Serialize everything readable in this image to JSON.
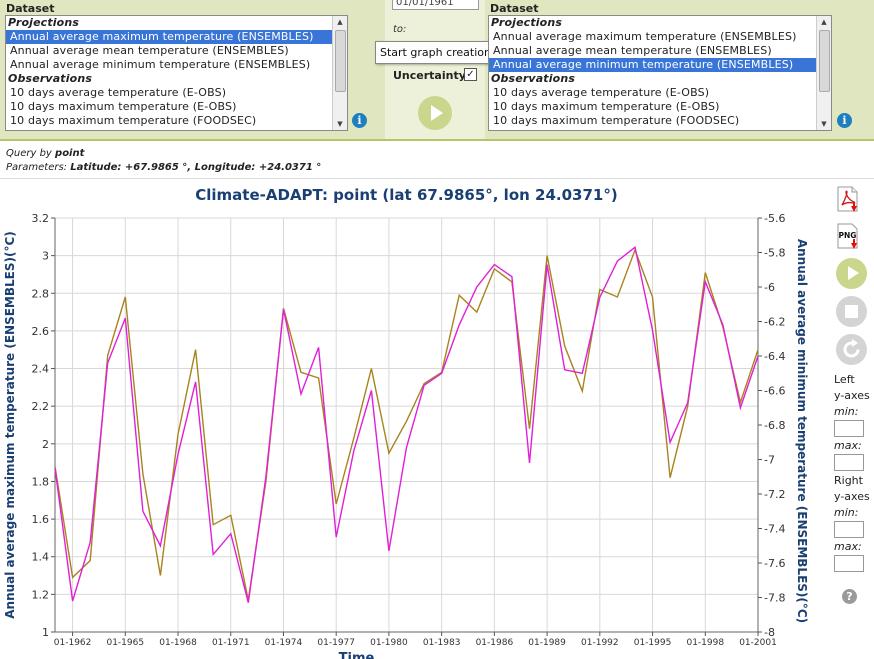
{
  "left_panel": {
    "label": "Dataset",
    "items": [
      {
        "text": "Projections",
        "type": "group"
      },
      {
        "text": "Annual average maximum temperature (ENSEMBLES)",
        "type": "selected"
      },
      {
        "text": "Annual average mean temperature (ENSEMBLES)",
        "type": "item"
      },
      {
        "text": "Annual average minimum temperature (ENSEMBLES)",
        "type": "item"
      },
      {
        "text": "Observations",
        "type": "group"
      },
      {
        "text": "10 days average temperature (E-OBS)",
        "type": "item"
      },
      {
        "text": "10 days maximum temperature (E-OBS)",
        "type": "item"
      },
      {
        "text": "10 days maximum temperature (FOODSEC)",
        "type": "item"
      }
    ]
  },
  "right_panel": {
    "label": "Dataset",
    "items": [
      {
        "text": "Projections",
        "type": "group"
      },
      {
        "text": "Annual average maximum temperature (ENSEMBLES)",
        "type": "item"
      },
      {
        "text": "Annual average mean temperature (ENSEMBLES)",
        "type": "item"
      },
      {
        "text": "Annual average minimum temperature (ENSEMBLES)",
        "type": "selected"
      },
      {
        "text": "Observations",
        "type": "group"
      },
      {
        "text": "10 days average temperature (E-OBS)",
        "type": "item"
      },
      {
        "text": "10 days maximum temperature (E-OBS)",
        "type": "item"
      },
      {
        "text": "10 days maximum temperature (FOODSEC)",
        "type": "item"
      }
    ]
  },
  "controls": {
    "from_date": "01/01/1961",
    "to_label": "to:",
    "tooltip": "Start graph creation",
    "uncertainty_label": "Uncertainty",
    "uncertainty_checked": "✓"
  },
  "query": {
    "prefix": "Query by",
    "mode": "point",
    "params_label": "Parameters:",
    "params_value": "Latitude: +67.9865 °, Longitude: +24.0371 °"
  },
  "sidebar": {
    "pdf_label": "PDF",
    "png_label": "PNG",
    "left_axes_label": "Left",
    "right_axes_label": "Right",
    "axes_label": "y-axes",
    "min_label": "min:",
    "max_label": "max:",
    "help": "?"
  },
  "colors": {
    "left_series": "#a8841e",
    "right_series": "#e020d8",
    "axis_title": "#1a3f72",
    "grid": "#d8d8d8"
  },
  "chart_data": {
    "type": "line",
    "title": "Climate-ADAPT: point (lat 67.9865°, lon 24.0371°)",
    "xlabel": "Time",
    "ylabel_left": "Annual average maximum temperature (ENSEMBLES)(°C)",
    "ylabel_right": "Annual average minimum temperature (ENSEMBLES)(°C)",
    "x_ticks": [
      "01-1962",
      "01-1965",
      "01-1968",
      "01-1971",
      "01-1974",
      "01-1977",
      "01-1980",
      "01-1983",
      "01-1986",
      "01-1989",
      "01-1992",
      "01-1995",
      "01-1998",
      "01-2001"
    ],
    "x": [
      1961,
      1962,
      1963,
      1964,
      1965,
      1966,
      1967,
      1968,
      1969,
      1970,
      1971,
      1972,
      1973,
      1974,
      1975,
      1976,
      1977,
      1978,
      1979,
      1980,
      1981,
      1982,
      1983,
      1984,
      1985,
      1986,
      1987,
      1988,
      1989,
      1990,
      1991,
      1992,
      1993,
      1994,
      1995,
      1996,
      1997,
      1998,
      1999,
      2000,
      2001
    ],
    "xlim": [
      1961,
      2001
    ],
    "ylim_left": [
      1,
      3.2
    ],
    "ylim_right": [
      -8,
      -5.6
    ],
    "y_ticks_left": [
      "1",
      "1.2",
      "1.4",
      "1.6",
      "1.8",
      "2",
      "2.2",
      "2.4",
      "2.6",
      "2.8",
      "3",
      "3.2"
    ],
    "y_ticks_right": [
      "-8",
      "-7.8",
      "-7.6",
      "-7.4",
      "-7.2",
      "-7",
      "-6.8",
      "-6.6",
      "-6.4",
      "-6.2",
      "-6",
      "-5.8",
      "-5.6"
    ],
    "grid": true,
    "series": [
      {
        "name": "Annual average maximum temperature (ENSEMBLES)",
        "axis": "left",
        "values": [
          1.88,
          1.29,
          1.38,
          2.47,
          2.78,
          1.84,
          1.3,
          2.05,
          2.5,
          1.57,
          1.62,
          1.17,
          1.8,
          2.72,
          2.38,
          2.35,
          1.68,
          2.03,
          2.4,
          1.95,
          2.12,
          2.32,
          2.38,
          2.79,
          2.7,
          2.93,
          2.86,
          2.08,
          3.0,
          2.52,
          2.28,
          2.82,
          2.78,
          3.03,
          2.78,
          1.82,
          2.2,
          2.91,
          2.62,
          2.22,
          2.5
        ]
      },
      {
        "name": "Annual average minimum temperature (ENSEMBLES)",
        "axis": "right",
        "values": [
          -7.05,
          -7.82,
          -7.48,
          -6.44,
          -6.18,
          -7.3,
          -7.5,
          -6.97,
          -6.55,
          -7.55,
          -7.43,
          -7.83,
          -7.1,
          -6.13,
          -6.62,
          -6.35,
          -7.45,
          -6.95,
          -6.6,
          -7.53,
          -6.93,
          -6.57,
          -6.5,
          -6.22,
          -6.0,
          -5.87,
          -5.94,
          -7.02,
          -5.87,
          -6.48,
          -6.5,
          -6.06,
          -5.85,
          -5.77,
          -6.25,
          -6.9,
          -6.67,
          -5.97,
          -6.22,
          -6.7,
          -6.4
        ]
      }
    ]
  }
}
